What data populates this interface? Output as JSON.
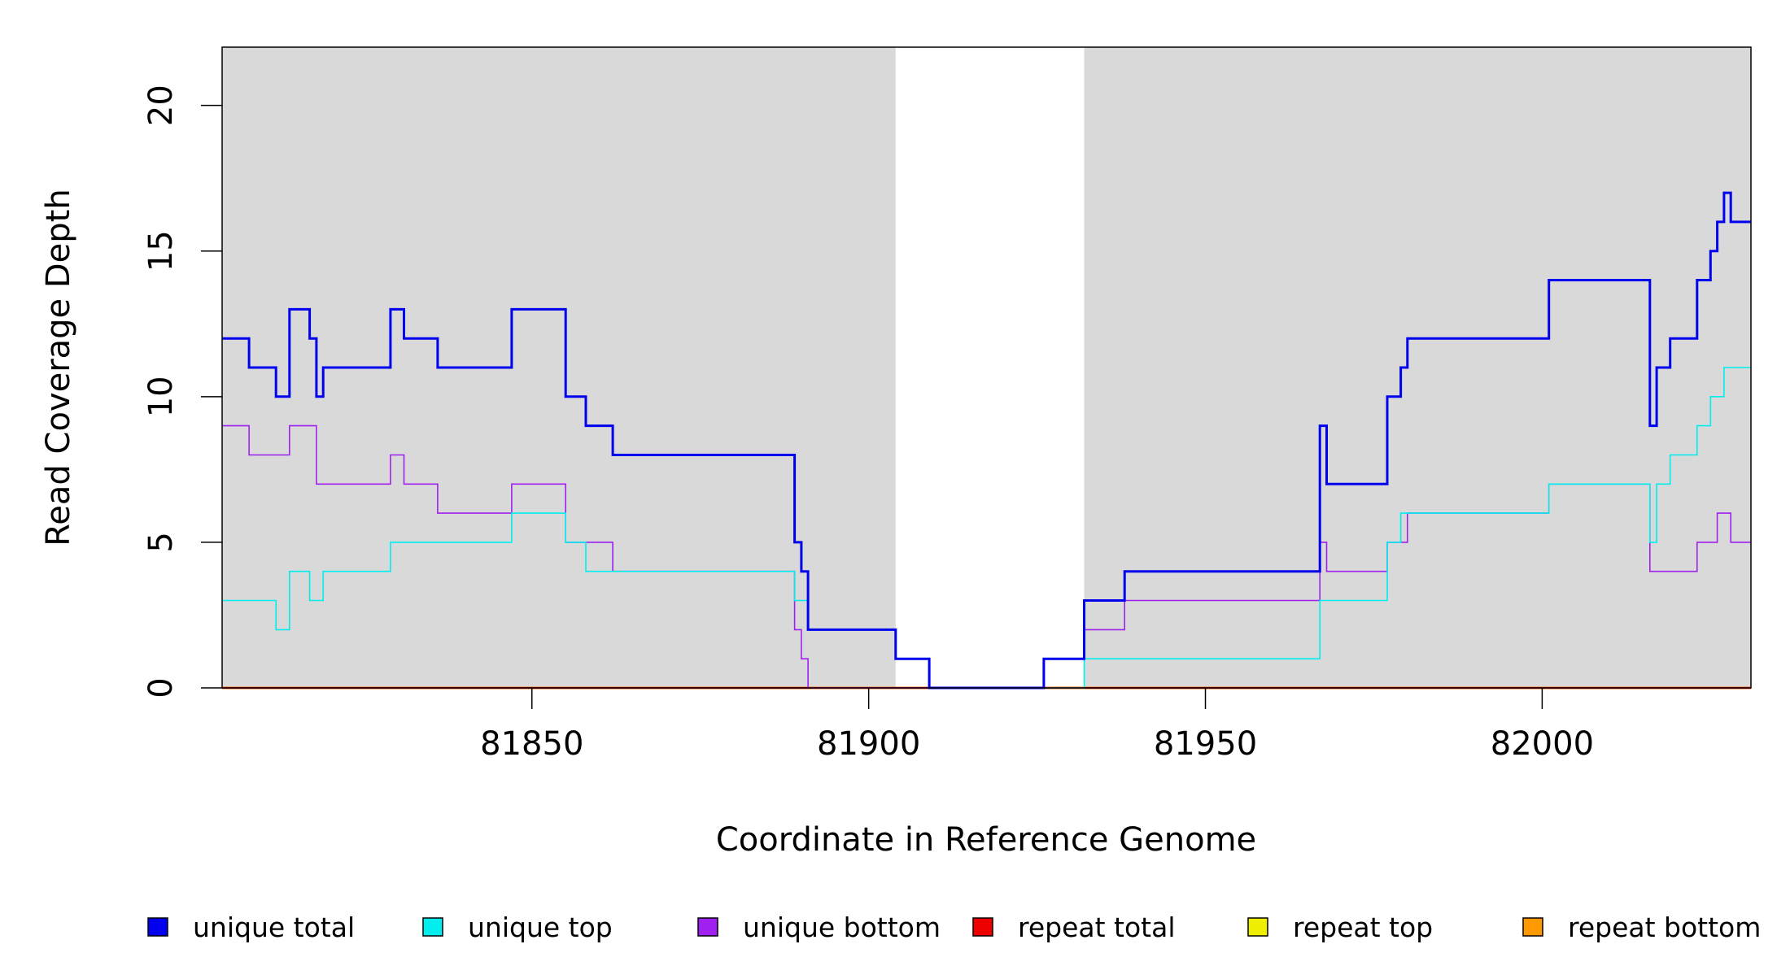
{
  "chart_data": {
    "type": "line",
    "step": true,
    "title": "",
    "xlabel": "Coordinate in Reference Genome",
    "ylabel": "Read Coverage Depth",
    "xlim": [
      81804,
      82031
    ],
    "ylim": [
      0,
      22
    ],
    "x_ticks": [
      81850,
      81900,
      81950,
      82000
    ],
    "y_ticks": [
      0,
      5,
      10,
      15,
      20
    ],
    "grid": false,
    "background_color": "#d9d9d9",
    "unshaded_region": [
      81904,
      81932
    ],
    "legend_position": "bottom",
    "series": [
      {
        "name": "unique total",
        "color": "#0000ee",
        "points": [
          [
            81804,
            12
          ],
          [
            81808,
            11
          ],
          [
            81812,
            10
          ],
          [
            81814,
            13
          ],
          [
            81817,
            12
          ],
          [
            81818,
            10
          ],
          [
            81819,
            11
          ],
          [
            81829,
            13
          ],
          [
            81831,
            12
          ],
          [
            81836,
            11
          ],
          [
            81847,
            13
          ],
          [
            81855,
            10
          ],
          [
            81858,
            9
          ],
          [
            81862,
            8
          ],
          [
            81889,
            5
          ],
          [
            81890,
            4
          ],
          [
            81891,
            2
          ],
          [
            81904,
            1
          ],
          [
            81909,
            0
          ],
          [
            81926,
            1
          ],
          [
            81932,
            3
          ],
          [
            81938,
            4
          ],
          [
            81967,
            9
          ],
          [
            81968,
            7
          ],
          [
            81977,
            10
          ],
          [
            81979,
            11
          ],
          [
            81980,
            12
          ],
          [
            82001,
            14
          ],
          [
            82016,
            9
          ],
          [
            82017,
            11
          ],
          [
            82019,
            12
          ],
          [
            82023,
            14
          ],
          [
            82025,
            15
          ],
          [
            82026,
            16
          ],
          [
            82027,
            17
          ],
          [
            82028,
            16
          ],
          [
            82031,
            16
          ]
        ]
      },
      {
        "name": "unique top",
        "color": "#00eeee",
        "points": [
          [
            81804,
            3
          ],
          [
            81812,
            2
          ],
          [
            81814,
            4
          ],
          [
            81817,
            3
          ],
          [
            81819,
            4
          ],
          [
            81829,
            5
          ],
          [
            81847,
            6
          ],
          [
            81855,
            5
          ],
          [
            81858,
            4
          ],
          [
            81889,
            3
          ],
          [
            81891,
            2
          ],
          [
            81904,
            1
          ],
          [
            81909,
            0
          ],
          [
            81932,
            1
          ],
          [
            81967,
            3
          ],
          [
            81977,
            5
          ],
          [
            81979,
            6
          ],
          [
            82001,
            7
          ],
          [
            82016,
            5
          ],
          [
            82017,
            7
          ],
          [
            82019,
            8
          ],
          [
            82023,
            9
          ],
          [
            82025,
            10
          ],
          [
            82027,
            11
          ],
          [
            82031,
            11
          ]
        ]
      },
      {
        "name": "unique bottom",
        "color": "#a020f0",
        "points": [
          [
            81804,
            9
          ],
          [
            81808,
            8
          ],
          [
            81814,
            9
          ],
          [
            81818,
            7
          ],
          [
            81829,
            8
          ],
          [
            81831,
            7
          ],
          [
            81836,
            6
          ],
          [
            81847,
            7
          ],
          [
            81855,
            5
          ],
          [
            81862,
            4
          ],
          [
            81889,
            2
          ],
          [
            81890,
            1
          ],
          [
            81891,
            0
          ],
          [
            81926,
            1
          ],
          [
            81932,
            2
          ],
          [
            81938,
            3
          ],
          [
            81967,
            5
          ],
          [
            81968,
            4
          ],
          [
            81977,
            5
          ],
          [
            81980,
            6
          ],
          [
            82001,
            7
          ],
          [
            82016,
            4
          ],
          [
            82023,
            5
          ],
          [
            82026,
            6
          ],
          [
            82028,
            5
          ],
          [
            82031,
            5
          ]
        ]
      },
      {
        "name": "repeat total",
        "color": "#ee0000",
        "points": [
          [
            81804,
            0
          ],
          [
            82031,
            0
          ]
        ]
      },
      {
        "name": "repeat top",
        "color": "#eeee00",
        "points": [
          [
            81804,
            0
          ],
          [
            82031,
            0
          ]
        ]
      },
      {
        "name": "repeat bottom",
        "color": "#ff9900",
        "points": [
          [
            81804,
            0
          ],
          [
            82031,
            0
          ]
        ]
      }
    ]
  }
}
